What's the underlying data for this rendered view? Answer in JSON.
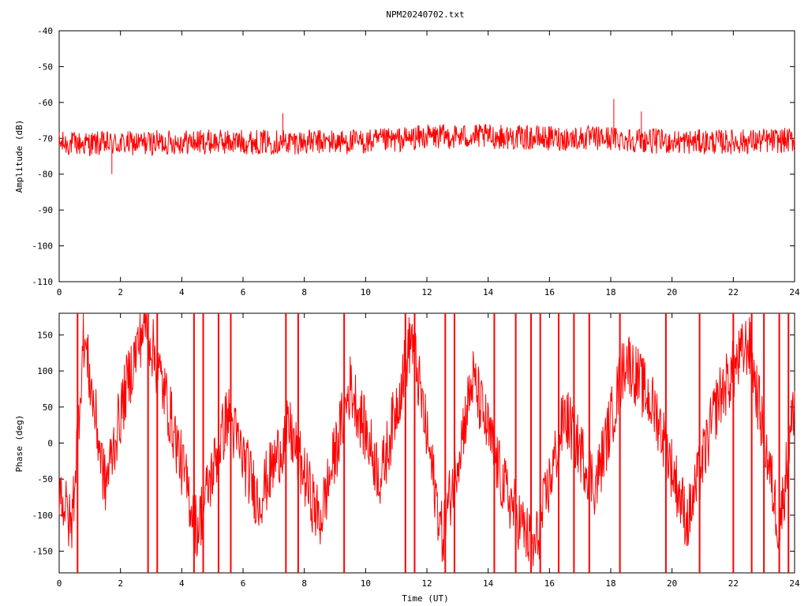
{
  "title": "NPM20240702.txt",
  "chart_data": [
    {
      "type": "line",
      "name": "amplitude-panel",
      "ylabel": "Amplitude (dB)",
      "xlabel": "",
      "xlim": [
        0,
        24
      ],
      "ylim": [
        -110,
        -40
      ],
      "x_ticks": [
        "0",
        "2",
        "4",
        "6",
        "8",
        "10",
        "12",
        "14",
        "16",
        "18",
        "20",
        "22",
        "24"
      ],
      "y_ticks": [
        "-40",
        "-50",
        "-60",
        "-70",
        "-80",
        "-90",
        "-100",
        "-110"
      ],
      "series_color": "#ff0000",
      "baseline": {
        "x": [
          0,
          2,
          4,
          6,
          8,
          10,
          11,
          12,
          13,
          14,
          16,
          18,
          20,
          22,
          24
        ],
        "y": [
          -71.5,
          -71.5,
          -71,
          -71,
          -71,
          -71,
          -70.5,
          -69.5,
          -69.5,
          -69.5,
          -70,
          -70,
          -71,
          -71,
          -70.5
        ]
      },
      "noise_band_db": 3.5,
      "spikes": [
        {
          "x": 1.72,
          "y": -80
        },
        {
          "x": 7.3,
          "y": -63
        },
        {
          "x": 18.1,
          "y": -59
        },
        {
          "x": 19.0,
          "y": -62.5
        }
      ]
    },
    {
      "type": "line",
      "name": "phase-panel",
      "ylabel": "Phase (deg)",
      "xlabel": "Time (UT)",
      "xlim": [
        0,
        24
      ],
      "ylim": [
        -180,
        180
      ],
      "x_ticks": [
        "0",
        "2",
        "4",
        "6",
        "8",
        "10",
        "12",
        "14",
        "16",
        "18",
        "20",
        "22",
        "24"
      ],
      "y_ticks": [
        "150",
        "100",
        "50",
        "0",
        "-50",
        "-100",
        "-150"
      ],
      "series_color": "#ff0000",
      "trend": {
        "x": [
          0,
          0.4,
          0.8,
          1.5,
          2.2,
          2.8,
          3.5,
          4.5,
          5.5,
          6.5,
          7.5,
          8.5,
          9.5,
          10.5,
          11.5,
          12.5,
          13.5,
          14.5,
          15.5,
          16.5,
          17.5,
          18.5,
          19.5,
          20.5,
          21.5,
          22.5,
          23.5,
          24
        ],
        "y": [
          -60,
          -120,
          150,
          -60,
          80,
          170,
          60,
          -120,
          40,
          -80,
          20,
          -110,
          80,
          -50,
          150,
          -130,
          90,
          -60,
          -150,
          40,
          -60,
          120,
          40,
          -110,
          60,
          140,
          -120,
          60
        ]
      },
      "wraps": [
        0.6,
        2.9,
        3.2,
        4.4,
        4.7,
        5.2,
        5.6,
        7.4,
        7.8,
        9.3,
        11.3,
        11.6,
        12.6,
        12.9,
        14.2,
        14.9,
        15.4,
        15.7,
        16.3,
        16.8,
        17.3,
        18.3,
        19.8,
        20.9,
        22.0,
        22.6,
        23.0,
        23.5,
        23.8
      ]
    }
  ]
}
